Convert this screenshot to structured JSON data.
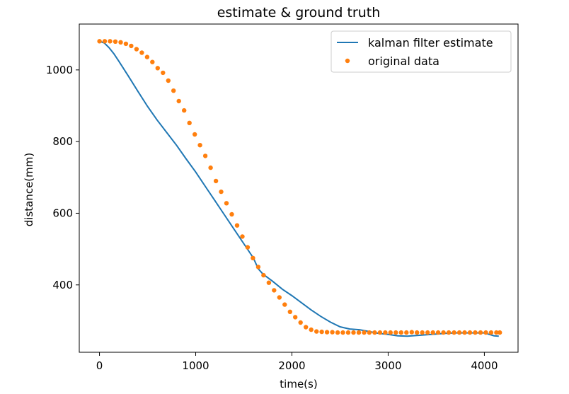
{
  "chart_data": {
    "type": "line",
    "title": "estimate & ground truth",
    "xlabel": "time(s)",
    "ylabel": "distance(mm)",
    "xlim": [
      -210,
      4350
    ],
    "ylim": [
      212,
      1128
    ],
    "xticks": [
      0,
      1000,
      2000,
      3000,
      4000
    ],
    "yticks": [
      400,
      600,
      800,
      1000
    ],
    "grid": false,
    "legend_position": "top-right",
    "series": [
      {
        "name": "kalman filter estimate",
        "style": "line",
        "color": "#1f77b4",
        "x": [
          0,
          50,
          100,
          150,
          200,
          300,
          400,
          500,
          600,
          700,
          800,
          900,
          1000,
          1100,
          1200,
          1300,
          1400,
          1500,
          1600,
          1650,
          1700,
          1800,
          1900,
          2000,
          2100,
          2200,
          2300,
          2400,
          2500,
          2600,
          2700,
          2800,
          2900,
          3000,
          3100,
          3200,
          3300,
          3400,
          3500,
          3600,
          3700,
          3800,
          3900,
          4000,
          4050,
          4100,
          4150
        ],
        "y": [
          1080,
          1075,
          1062,
          1045,
          1025,
          983,
          940,
          898,
          860,
          825,
          790,
          752,
          715,
          675,
          635,
          595,
          555,
          515,
          475,
          445,
          430,
          410,
          388,
          370,
          350,
          330,
          312,
          296,
          283,
          277,
          275,
          270,
          265,
          262,
          258,
          257,
          259,
          261,
          263,
          265,
          266,
          266,
          266,
          266,
          262,
          258,
          257
        ]
      },
      {
        "name": "original data",
        "style": "dots",
        "color": "#ff7f0e",
        "x": [
          0,
          55,
          110,
          165,
          220,
          275,
          330,
          385,
          440,
          495,
          550,
          605,
          660,
          715,
          770,
          825,
          880,
          935,
          990,
          1045,
          1100,
          1155,
          1210,
          1265,
          1320,
          1375,
          1430,
          1485,
          1540,
          1595,
          1650,
          1705,
          1760,
          1815,
          1870,
          1925,
          1980,
          2035,
          2090,
          2145,
          2200,
          2255,
          2310,
          2365,
          2420,
          2475,
          2530,
          2585,
          2640,
          2695,
          2750,
          2805,
          2860,
          2915,
          2970,
          3025,
          3080,
          3135,
          3190,
          3245,
          3300,
          3355,
          3410,
          3465,
          3520,
          3575,
          3630,
          3685,
          3740,
          3795,
          3850,
          3905,
          3960,
          4015,
          4070,
          4125,
          4160
        ],
        "y": [
          1080,
          1080,
          1080,
          1079,
          1077,
          1073,
          1067,
          1058,
          1048,
          1036,
          1022,
          1005,
          992,
          970,
          942,
          913,
          887,
          852,
          820,
          790,
          760,
          727,
          690,
          660,
          628,
          597,
          566,
          535,
          505,
          475,
          450,
          427,
          406,
          385,
          365,
          345,
          325,
          310,
          295,
          282,
          275,
          270,
          269,
          268,
          268,
          267,
          267,
          267,
          267,
          267,
          267,
          267,
          267,
          267,
          267,
          267,
          267,
          267,
          267,
          268,
          267,
          267,
          267,
          267,
          267,
          267,
          267,
          267,
          267,
          267,
          267,
          267,
          267,
          267,
          267,
          267,
          267
        ]
      }
    ]
  }
}
